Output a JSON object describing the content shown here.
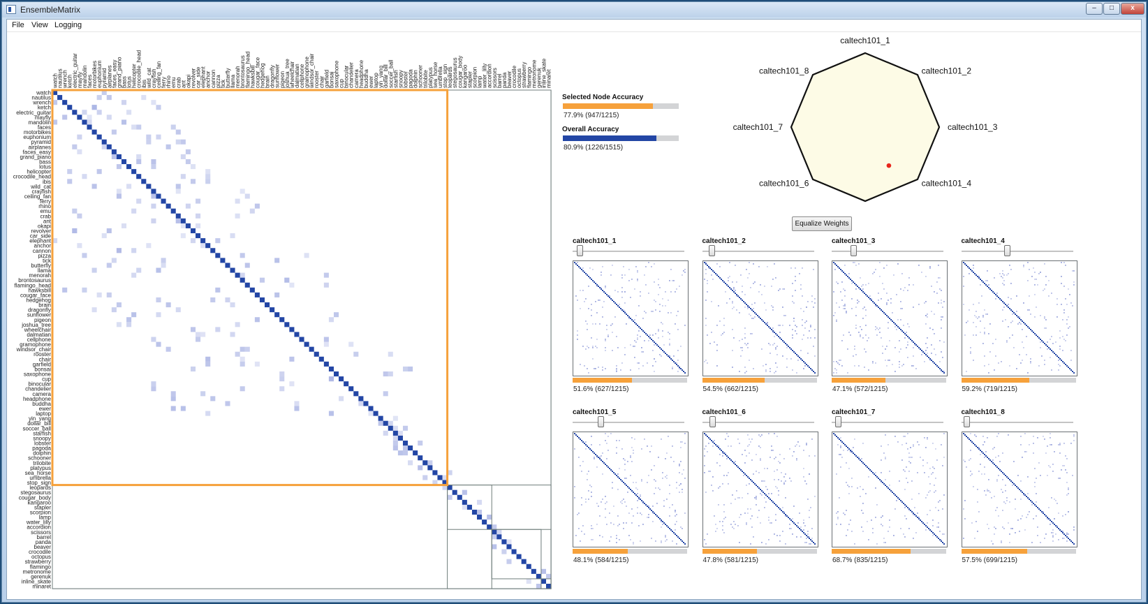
{
  "window": {
    "title": "EnsembleMatrix",
    "min_glyph": "–",
    "max_glyph": "□",
    "close_glyph": "x"
  },
  "menu": {
    "items": [
      "File",
      "View",
      "Logging"
    ]
  },
  "colors": {
    "accent": "#f6a13b",
    "diag": "#2346a5",
    "off": "#aab4e4",
    "overall": "#2346a5",
    "radar_fill": "#fdfbe6",
    "dot": "#e8261c"
  },
  "classes": [
    "watch",
    "nautilus",
    "wrench",
    "ketch",
    "electric_guitar",
    "mayfly",
    "mandolin",
    "faces",
    "motorbikes",
    "euphonium",
    "pyramid",
    "airplanes",
    "faces_easy",
    "grand_piano",
    "bass",
    "lotus",
    "helicopter",
    "crocodile_head",
    "ibis",
    "wild_cat",
    "crayfish",
    "ceiling_fan",
    "ferry",
    "rhino",
    "emu",
    "crab",
    "ant",
    "okapi",
    "revolver",
    "car_side",
    "elephant",
    "anchor",
    "cannon",
    "pizza",
    "tick",
    "butterfly",
    "llama",
    "menorah",
    "brontosaurus",
    "flamingo_head",
    "hawksbill",
    "cougar_face",
    "hedgehog",
    "brain",
    "dragonfly",
    "sunflower",
    "pigeon",
    "joshua_tree",
    "wheelchair",
    "dalmatian",
    "cellphone",
    "gramophone",
    "windsor_chair",
    "rooster",
    "chair",
    "garfield",
    "bonsai",
    "saxophone",
    "cup",
    "binocular",
    "chandelier",
    "camera",
    "headphone",
    "buddha",
    "ewer",
    "laptop",
    "yin_yang",
    "dollar_bill",
    "soccer_ball",
    "starfish",
    "snoopy",
    "lobster",
    "pagoda",
    "dolphin",
    "schooner",
    "trilobite",
    "platypus",
    "sea_horse",
    "umbrella",
    "stop_sign",
    "leopards",
    "stegosaurus",
    "cougar_body",
    "kangaroo",
    "stapler",
    "scorpion",
    "lamp",
    "water_lilly",
    "accordion",
    "scissors",
    "barrel",
    "panda",
    "beaver",
    "crocodile",
    "octopus",
    "strawberry",
    "flamingo",
    "metronome",
    "gerenuk",
    "inline_skate",
    "minaret"
  ],
  "selected_node": {
    "label": "Selected Node Accuracy",
    "percent": 77.9,
    "text": "77.9%  (947/1215)"
  },
  "overall": {
    "label": "Overall Accuracy",
    "percent": 80.9,
    "text": "80.9%  (1226/1515)"
  },
  "radar": {
    "labels": [
      "caltech101_1",
      "caltech101_2",
      "caltech101_3",
      "caltech101_4",
      "caltech101_5",
      "caltech101_6",
      "caltech101_7",
      "caltech101_8"
    ],
    "point": [
      0.32,
      0.52
    ]
  },
  "equalize_label": "Equalize Weights",
  "classifiers": [
    {
      "name": "caltech101_1",
      "weight": 0.04,
      "accuracy": 51.6,
      "text": "51.6%  (627/1215)"
    },
    {
      "name": "caltech101_2",
      "weight": 0.06,
      "accuracy": 54.5,
      "text": "54.5%  (662/1215)"
    },
    {
      "name": "caltech101_3",
      "weight": 0.18,
      "accuracy": 47.1,
      "text": "47.1%  (572/1215)"
    },
    {
      "name": "caltech101_4",
      "weight": 0.41,
      "accuracy": 59.2,
      "text": "59.2%  (719/1215)"
    },
    {
      "name": "caltech101_5",
      "weight": 0.24,
      "accuracy": 48.1,
      "text": "48.1%  (584/1215)"
    },
    {
      "name": "caltech101_6",
      "weight": 0.07,
      "accuracy": 47.8,
      "text": "47.8%  (581/1215)"
    },
    {
      "name": "caltech101_7",
      "weight": 0.03,
      "accuracy": 68.7,
      "text": "68.7%  (835/1215)"
    },
    {
      "name": "caltech101_8",
      "weight": 0.02,
      "accuracy": 57.5,
      "text": "57.5%  (699/1215)"
    }
  ]
}
